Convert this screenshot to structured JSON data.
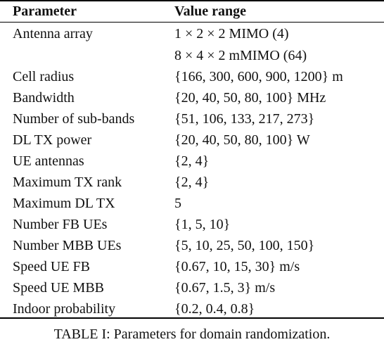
{
  "table": {
    "header": {
      "parameter": "Parameter",
      "value_range": "Value range"
    },
    "rows": [
      {
        "parameter": "Antenna array",
        "value": "1 × 2 × 2 MIMO (4)"
      },
      {
        "parameter": "",
        "value": "8 × 4 × 2 mMIMO (64)"
      },
      {
        "parameter": "Cell radius",
        "value": "{166, 300, 600, 900, 1200} m"
      },
      {
        "parameter": "Bandwidth",
        "value": "{20, 40, 50, 80, 100} MHz"
      },
      {
        "parameter": "Number of sub-bands",
        "value": "{51, 106, 133, 217, 273}"
      },
      {
        "parameter": "DL TX power",
        "value": "{20, 40, 50, 80, 100} W"
      },
      {
        "parameter": "UE antennas",
        "value": "{2, 4}"
      },
      {
        "parameter": "Maximum TX rank",
        "value": "{2, 4}"
      },
      {
        "parameter": "Maximum DL TX",
        "value": "5"
      },
      {
        "parameter": "Number FB UEs",
        "value": "{1, 5, 10}"
      },
      {
        "parameter": "Number MBB UEs",
        "value": "{5, 10, 25, 50, 100, 150}"
      },
      {
        "parameter": "Speed UE FB",
        "value": "{0.67, 10, 15, 30} m/s"
      },
      {
        "parameter": "Speed UE MBB",
        "value": "{0.67, 1.5, 3} m/s"
      },
      {
        "parameter": "Indoor probability",
        "value": "{0.2, 0.4, 0.8}"
      }
    ]
  },
  "caption": "TABLE I: Parameters for domain randomization."
}
